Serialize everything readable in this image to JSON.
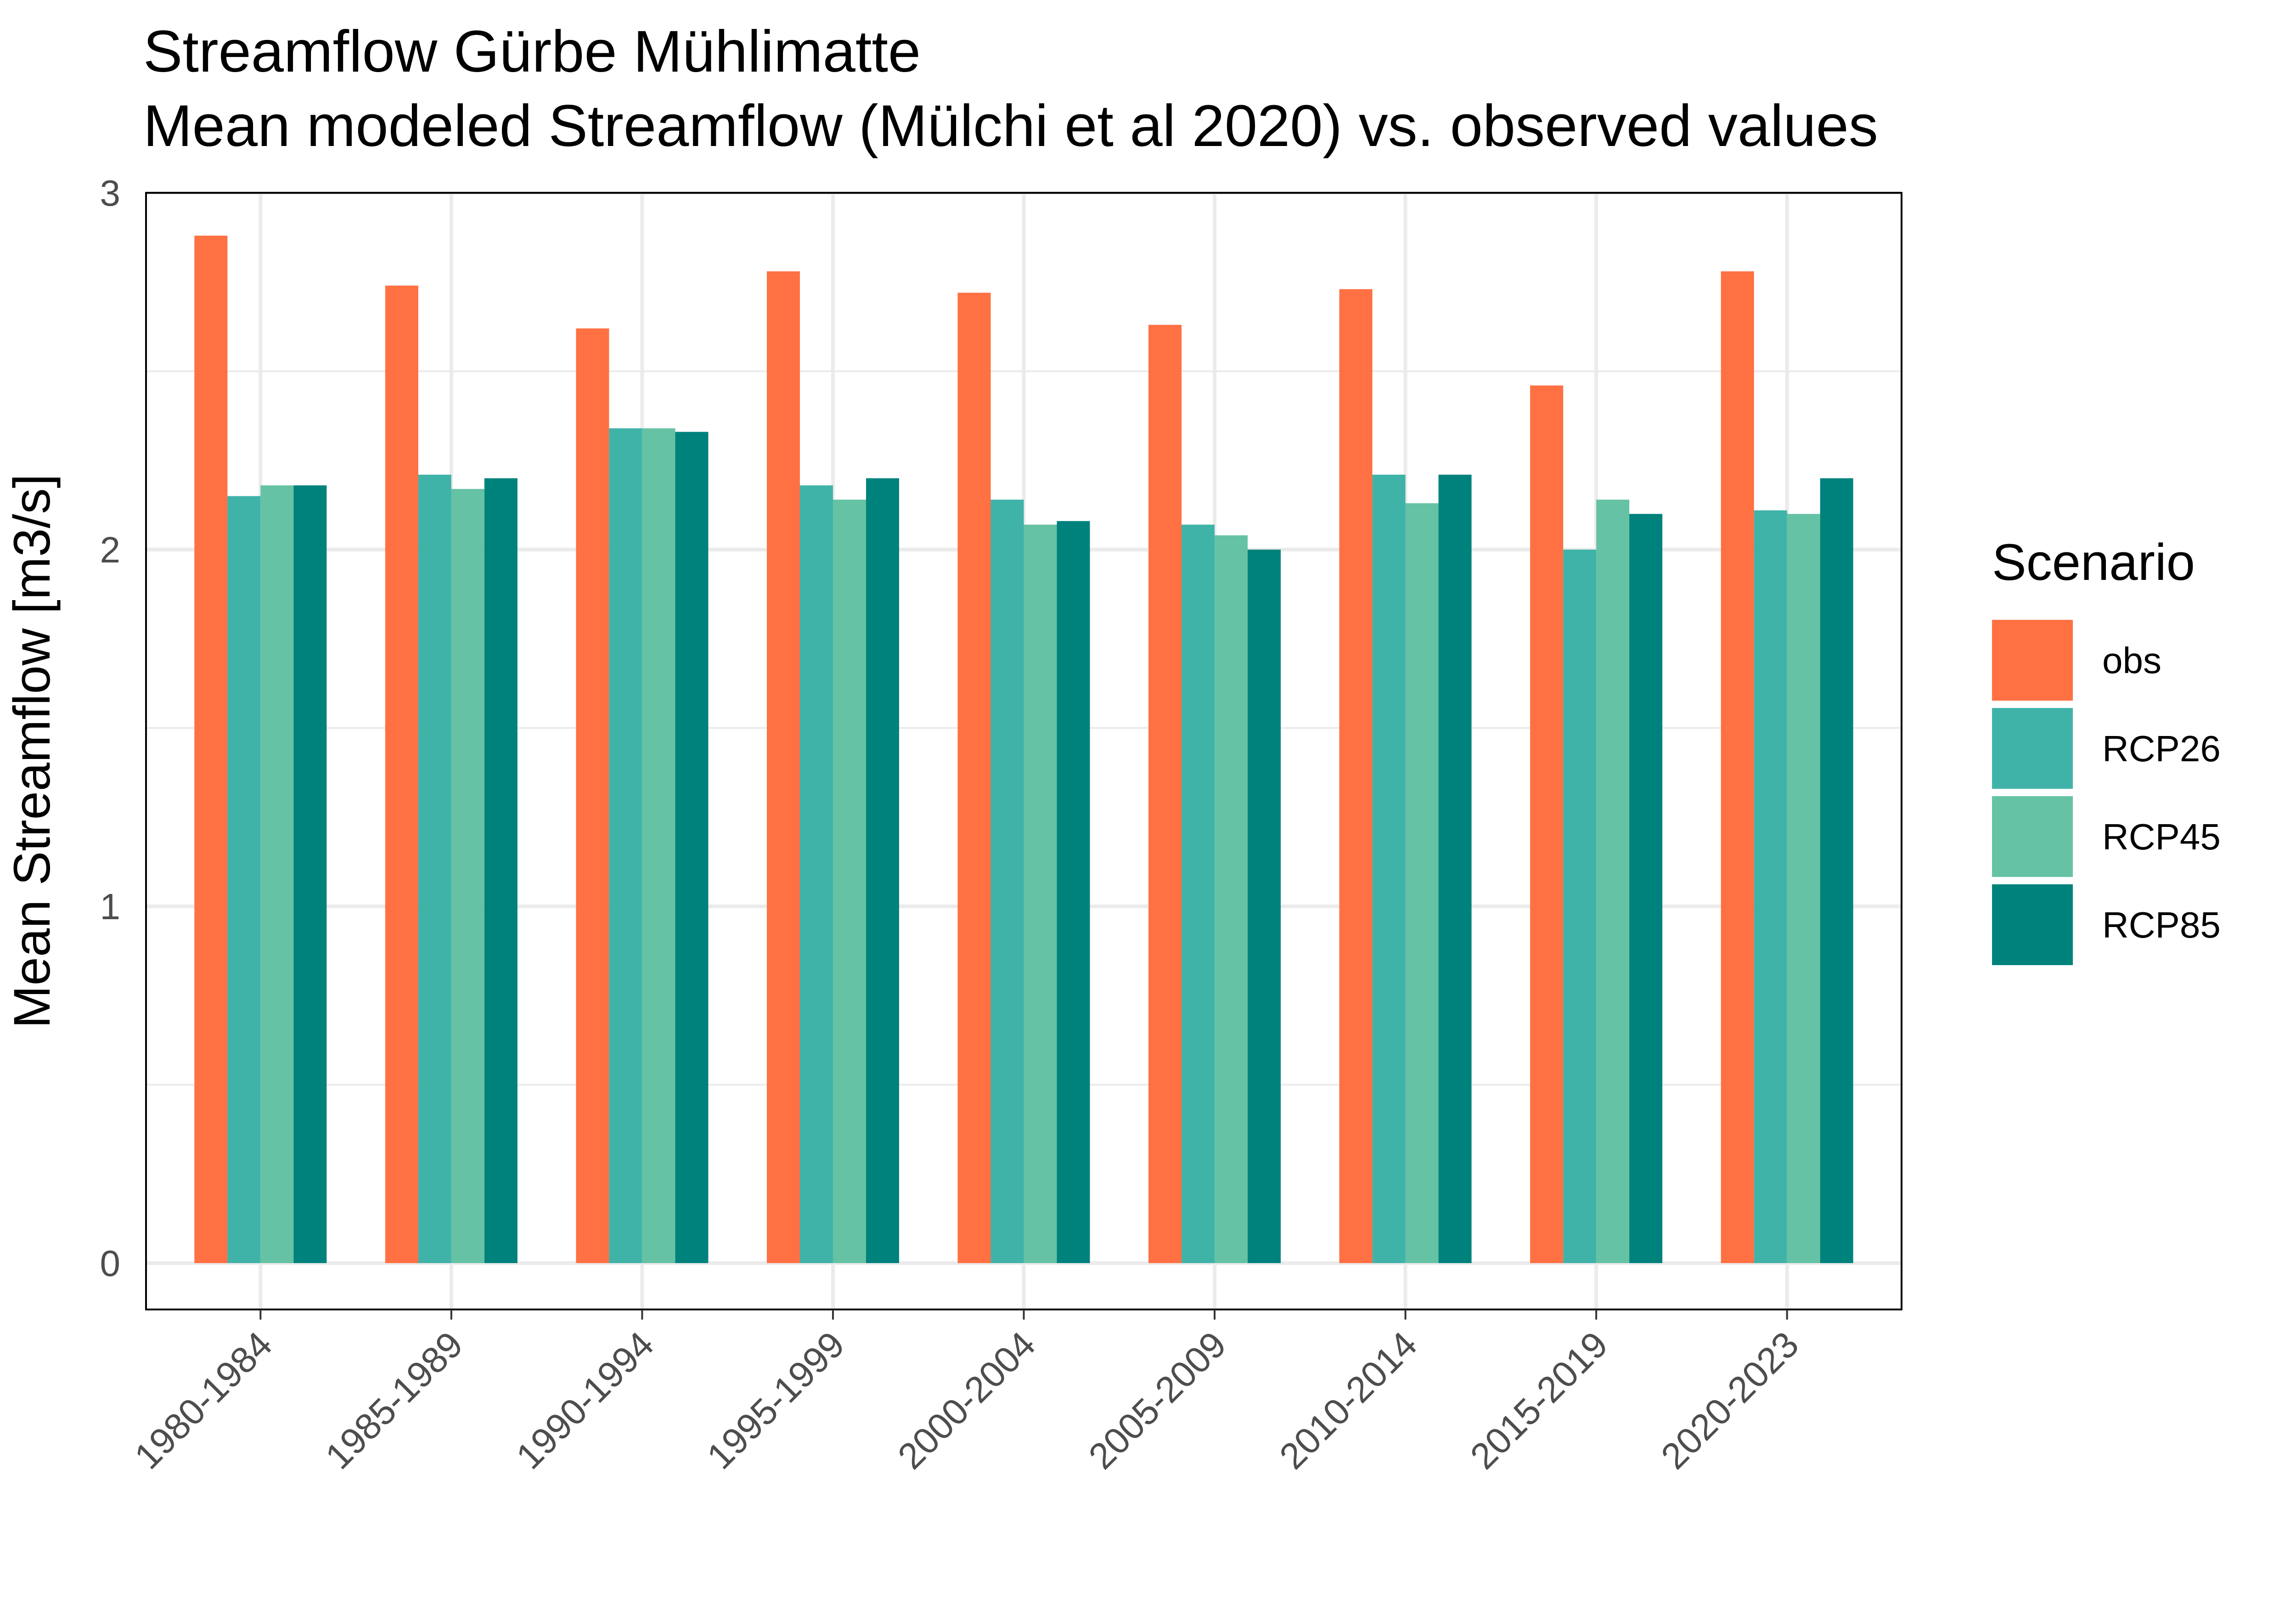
{
  "chart_data": {
    "type": "bar",
    "title": "Streamflow Gürbe Mühlimatte",
    "subtitle": "Mean modeled Streamflow (Mülchi et al 2020) vs. observed values",
    "xlabel": "",
    "ylabel": "Mean Streamflow [m3/s]",
    "ylim": [
      -0.13,
      3
    ],
    "yticks": [
      0,
      1,
      2,
      3
    ],
    "grid": true,
    "legend_title": "Scenario",
    "legend_position": "right",
    "categories": [
      "1980-1984",
      "1985-1989",
      "1990-1994",
      "1995-1999",
      "2000-2004",
      "2005-2009",
      "2010-2014",
      "2015-2019",
      "2020-2023"
    ],
    "series": [
      {
        "name": "obs",
        "color": "#ff7043",
        "values": [
          2.88,
          2.74,
          2.62,
          2.78,
          2.72,
          2.63,
          2.73,
          2.46,
          2.78
        ]
      },
      {
        "name": "RCP26",
        "color": "#40b3a9",
        "values": [
          2.15,
          2.21,
          2.34,
          2.18,
          2.14,
          2.07,
          2.21,
          2.0,
          2.11
        ]
      },
      {
        "name": "RCP45",
        "color": "#66c2a5",
        "values": [
          2.18,
          2.17,
          2.34,
          2.14,
          2.07,
          2.04,
          2.13,
          2.14,
          2.1
        ]
      },
      {
        "name": "RCP85",
        "color": "#00827c",
        "values": [
          2.18,
          2.2,
          2.33,
          2.2,
          2.08,
          2.0,
          2.21,
          2.1,
          2.2
        ]
      }
    ]
  }
}
